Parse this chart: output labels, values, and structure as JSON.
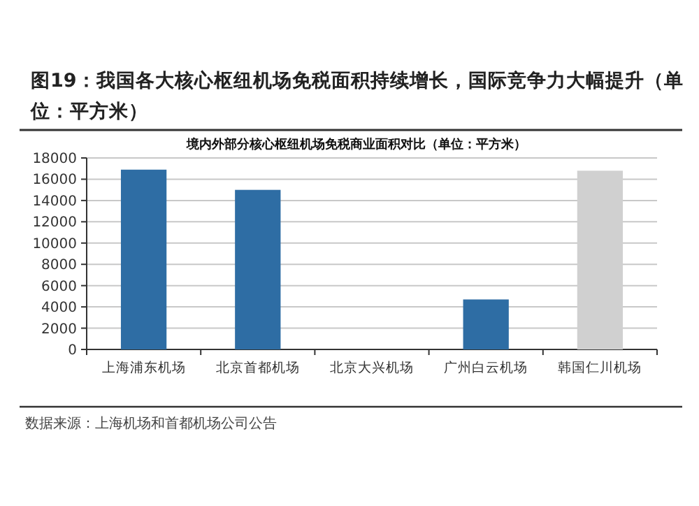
{
  "chart_data": {
    "type": "bar",
    "title": "图19：我国各大核心枢纽机场免税面积持续增长，国际竞争力大幅提升（单位：平方米）",
    "subtitle": "境内外部分核心枢纽机场免税商业面积对比（单位：平方米）",
    "categories": [
      "上海浦东机场",
      "北京首都机场",
      "北京大兴机场",
      "广州白云机场",
      "韩国仁川机场"
    ],
    "values": [
      16900,
      15000,
      null,
      4700,
      16800
    ],
    "colors": [
      "#2e6da4",
      "#2e6da4",
      null,
      "#2e6da4",
      "#d0d0d0"
    ],
    "ylim": [
      0,
      18000
    ],
    "yticks": [
      0,
      2000,
      4000,
      6000,
      8000,
      10000,
      12000,
      14000,
      16000,
      18000
    ],
    "grid": "y",
    "annotations": [
      "数据来源：上海机场和首都机场公司公告"
    ]
  }
}
